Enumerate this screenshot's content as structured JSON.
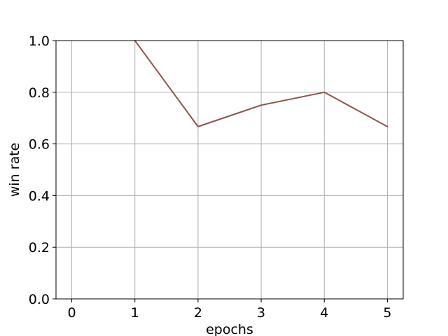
{
  "chart_data": {
    "type": "line",
    "title": "",
    "xlabel": "epochs",
    "ylabel": "win rate",
    "x": [
      1,
      2,
      3,
      4,
      5
    ],
    "series": [
      {
        "values": [
          1.0,
          0.667,
          0.75,
          0.8,
          0.667
        ],
        "color": "#8c564b"
      }
    ],
    "xlim": [
      -0.25,
      5.25
    ],
    "ylim": [
      0.0,
      1.0
    ],
    "xticks": [
      0,
      1,
      2,
      3,
      4,
      5
    ],
    "xtick_labels": [
      "0",
      "1",
      "2",
      "3",
      "4",
      "5"
    ],
    "yticks": [
      0.0,
      0.2,
      0.4,
      0.6,
      0.8,
      1.0
    ],
    "ytick_labels": [
      "0.0",
      "0.2",
      "0.4",
      "0.6",
      "0.8",
      "1.0"
    ],
    "grid": true,
    "legend": "none",
    "colors": {
      "grid": "#b0b0b0",
      "axis": "#000000",
      "background": "#ffffff"
    }
  }
}
